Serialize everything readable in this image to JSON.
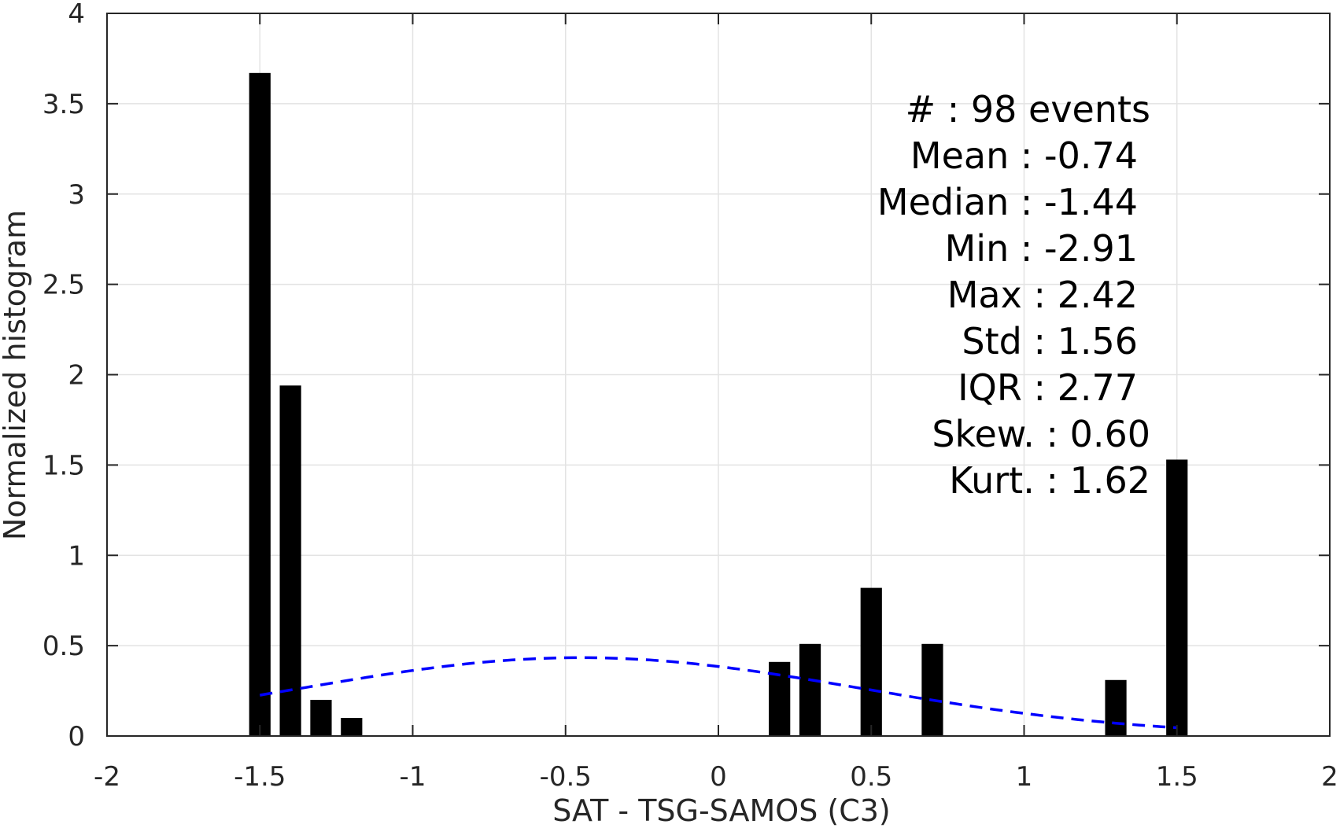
{
  "chart_data": {
    "type": "bar",
    "xlabel": "SAT - TSG-SAMOS (C3)",
    "ylabel": "Normalized histogram",
    "xlim": [
      -2,
      2
    ],
    "ylim": [
      0,
      4
    ],
    "xticks": [
      "-2",
      "-1.5",
      "-1",
      "-0.5",
      "0",
      "0.5",
      "1",
      "1.5",
      "2"
    ],
    "yticks": [
      "0",
      "0.5",
      "1",
      "1.5",
      "2",
      "2.5",
      "3",
      "3.5",
      "4"
    ],
    "grid": true,
    "bar_width": 0.07,
    "bars": [
      {
        "x": -1.5,
        "value": 3.67
      },
      {
        "x": -1.4,
        "value": 1.94
      },
      {
        "x": -1.3,
        "value": 0.2
      },
      {
        "x": -1.2,
        "value": 0.1
      },
      {
        "x": 0.2,
        "value": 0.41
      },
      {
        "x": 0.3,
        "value": 0.51
      },
      {
        "x": 0.5,
        "value": 0.82
      },
      {
        "x": 0.7,
        "value": 0.51
      },
      {
        "x": 1.3,
        "value": 0.31
      },
      {
        "x": 1.5,
        "value": 1.53
      }
    ],
    "fit_curve": {
      "style": "dashed",
      "color": "#0000ff",
      "mean": -0.45,
      "std": 0.92,
      "x_range": [
        -1.5,
        1.5
      ]
    },
    "stats": [
      {
        "label": "#  : 98 events",
        "align": "outer"
      },
      {
        "label": "Mean : -0.74",
        "align": "inner"
      },
      {
        "label": "Median : -1.44",
        "align": "inner"
      },
      {
        "label": "Min : -2.91",
        "align": "inner"
      },
      {
        "label": "Max : 2.42",
        "align": "inner"
      },
      {
        "label": "Std : 1.56",
        "align": "inner"
      },
      {
        "label": "IQR : 2.77",
        "align": "inner"
      },
      {
        "label": "Skew. : 0.60",
        "align": "outer"
      },
      {
        "label": "Kurt. : 1.62",
        "align": "outer"
      }
    ],
    "colors": {
      "bar": "#000000",
      "grid": "#e3e3e3",
      "axis": "#262626"
    }
  }
}
